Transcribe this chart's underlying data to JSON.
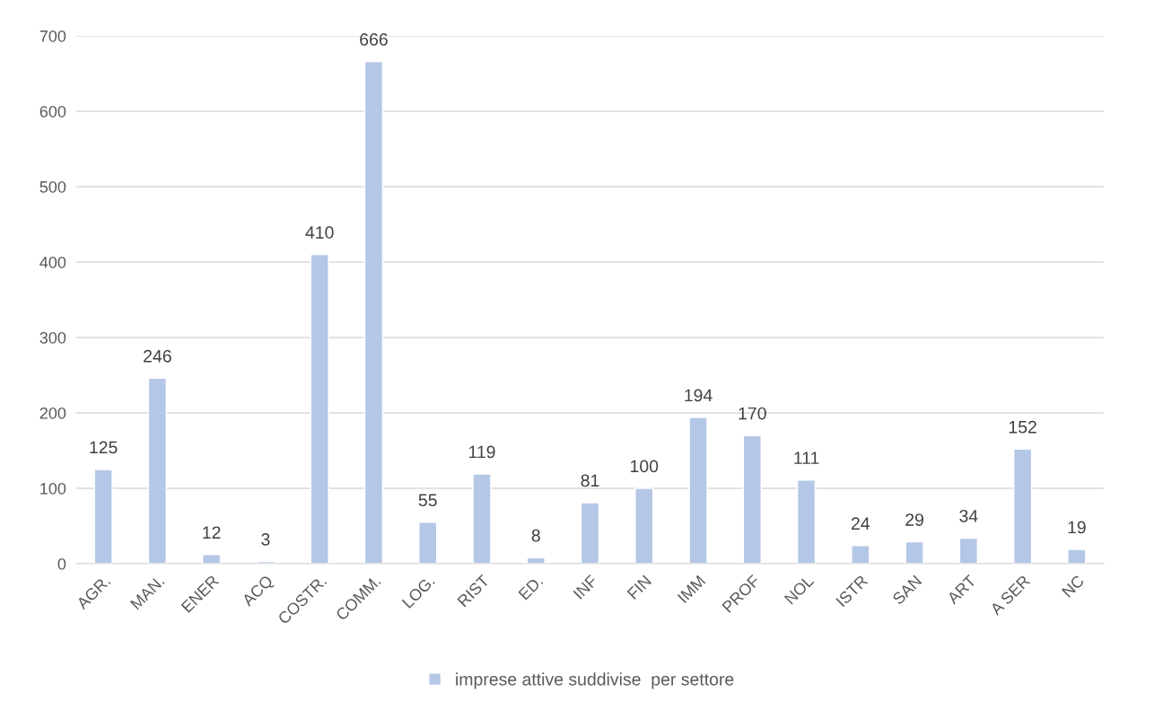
{
  "chart_data": {
    "type": "bar",
    "categories": [
      "AGR.",
      "MAN.",
      "ENER",
      "ACQ",
      "COSTR.",
      "COMM.",
      "LOG.",
      "RIST",
      "ED.",
      "INF",
      "FIN",
      "IMM",
      "PROF",
      "NOL",
      "ISTR",
      "SAN",
      "ART",
      "A SER",
      "NC"
    ],
    "series": [
      {
        "name": "imprese attive suddivise  per settore",
        "color": "#b4c7e7",
        "values": [
          125,
          246,
          12,
          3,
          410,
          666,
          55,
          119,
          8,
          81,
          100,
          194,
          170,
          111,
          24,
          29,
          34,
          152,
          19
        ]
      }
    ],
    "ylim": [
      0,
      700
    ],
    "yticks": [
      0,
      100,
      200,
      300,
      400,
      500,
      600,
      700
    ],
    "grid": "y",
    "legend": "bottom",
    "data_labels": true
  }
}
